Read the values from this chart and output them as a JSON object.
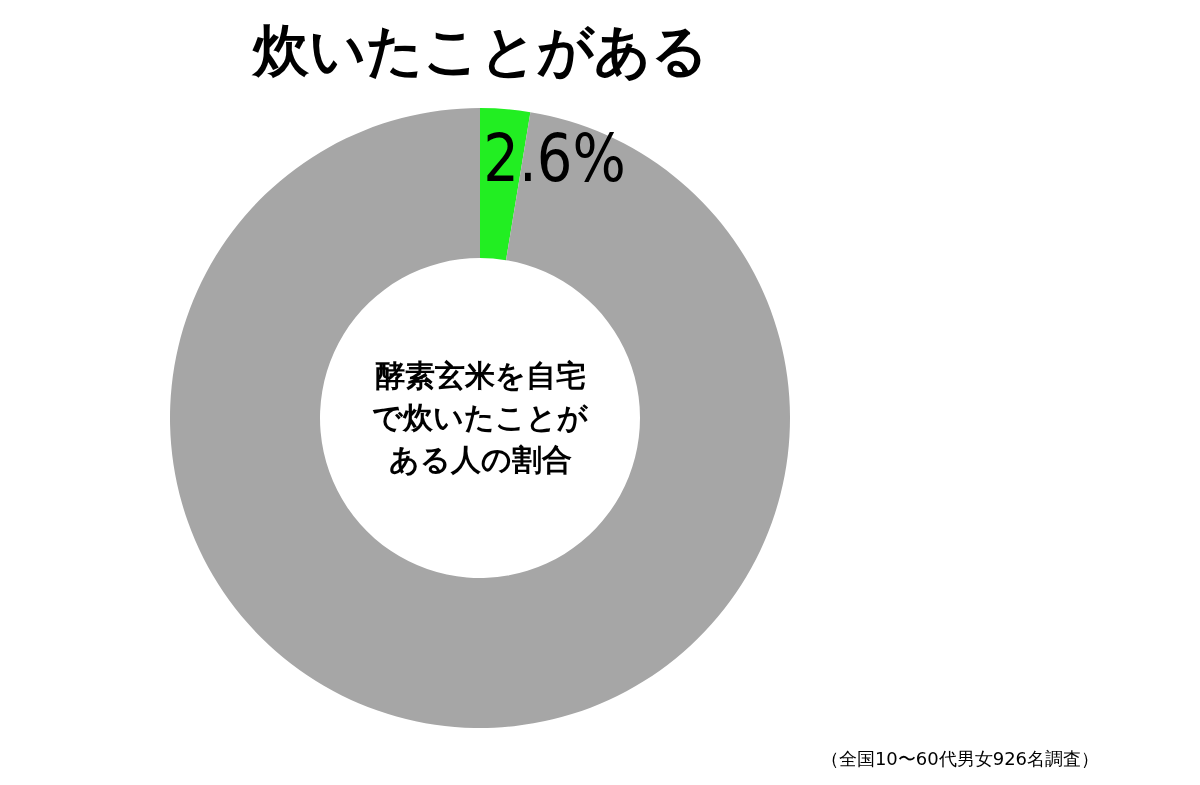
{
  "chart_data": {
    "type": "donut",
    "title": "酵素玄米を自宅で炊いたことがある人の割合",
    "categories": [
      "炊いたことがある",
      null
    ],
    "values": [
      2.6,
      97.4
    ],
    "colors": [
      "#22ee22",
      "#a6a6a6"
    ],
    "value_labels": [
      "2.6%",
      null
    ],
    "annotations": [
      "（全国10〜60代男女926名調査）"
    ]
  }
}
